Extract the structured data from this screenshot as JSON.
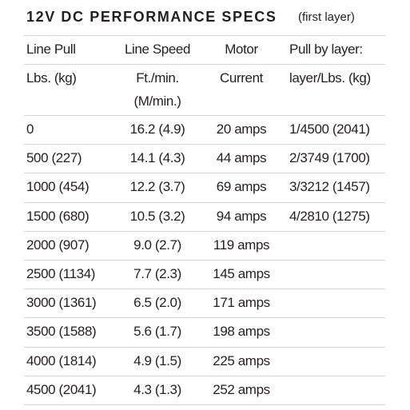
{
  "header": {
    "title": "12V DC PERFORMANCE SPECS",
    "subtitle": "(first layer)"
  },
  "table": {
    "columns": [
      "Line Pull",
      "Line Speed",
      "Motor",
      "Pull by layer:"
    ],
    "units": [
      [
        "Lbs. (kg)"
      ],
      [
        "Ft./min.",
        "(M/min.)"
      ],
      [
        "Current"
      ],
      [
        "layer/Lbs. (kg)"
      ]
    ],
    "rows": [
      [
        "0",
        "16.2 (4.9)",
        "20 amps",
        "1/4500 (2041)"
      ],
      [
        "500 (227)",
        "14.1 (4.3)",
        "44 amps",
        "2/3749 (1700)"
      ],
      [
        "1000 (454)",
        "12.2 (3.7)",
        "69 amps",
        "3/3212 (1457)"
      ],
      [
        "1500 (680)",
        "10.5 (3.2)",
        "94 amps",
        "4/2810 (1275)"
      ],
      [
        "2000 (907)",
        "9.0 (2.7)",
        "119 amps"
      ],
      [
        "2500 (1134)",
        "7.7 (2.3)",
        "145 amps"
      ],
      [
        "3000 (1361)",
        "6.5 (2.0)",
        "171 amps"
      ],
      [
        "3500 (1588)",
        "5.6 (1.7)",
        "198 amps"
      ],
      [
        "4000 (1814)",
        "4.9 (1.5)",
        "225 amps"
      ],
      [
        "4500 (2041)",
        "4.3 (1.3)",
        "252 amps"
      ]
    ]
  }
}
